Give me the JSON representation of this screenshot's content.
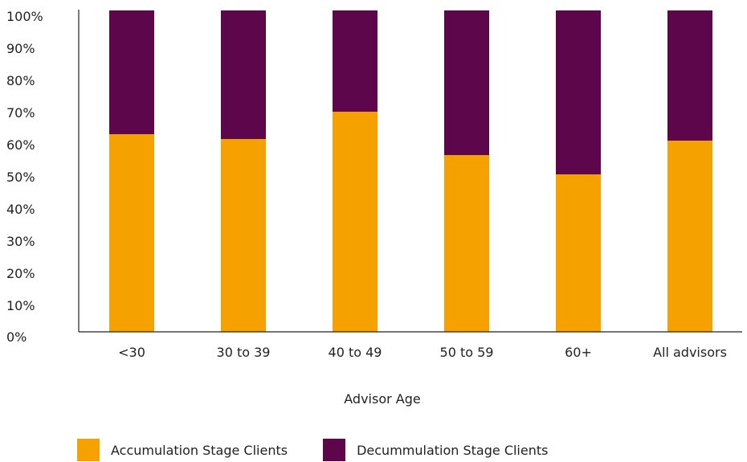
{
  "chart_data": {
    "type": "bar",
    "stacked": true,
    "categories": [
      "<30",
      "30 to 39",
      "40 to 49",
      "50 to 59",
      "60+",
      "All advisors"
    ],
    "series": [
      {
        "name": "Accumulation Stage Clients",
        "color": "#f5a200",
        "values": [
          61.5,
          60,
          68.5,
          55,
          49,
          59.5
        ]
      },
      {
        "name": "Decummulation Stage Clients",
        "color": "#5e064b",
        "values": [
          38.5,
          40,
          31.5,
          45,
          51,
          40.5
        ]
      }
    ],
    "xlabel": "Advisor Age",
    "ylabel": "",
    "ylim": [
      0,
      100
    ],
    "yticks": [
      "0%",
      "10%",
      "20%",
      "30%",
      "40%",
      "50%",
      "60%",
      "70%",
      "80%",
      "90%",
      "100%"
    ],
    "grid": false,
    "legend_position": "bottom-left"
  }
}
